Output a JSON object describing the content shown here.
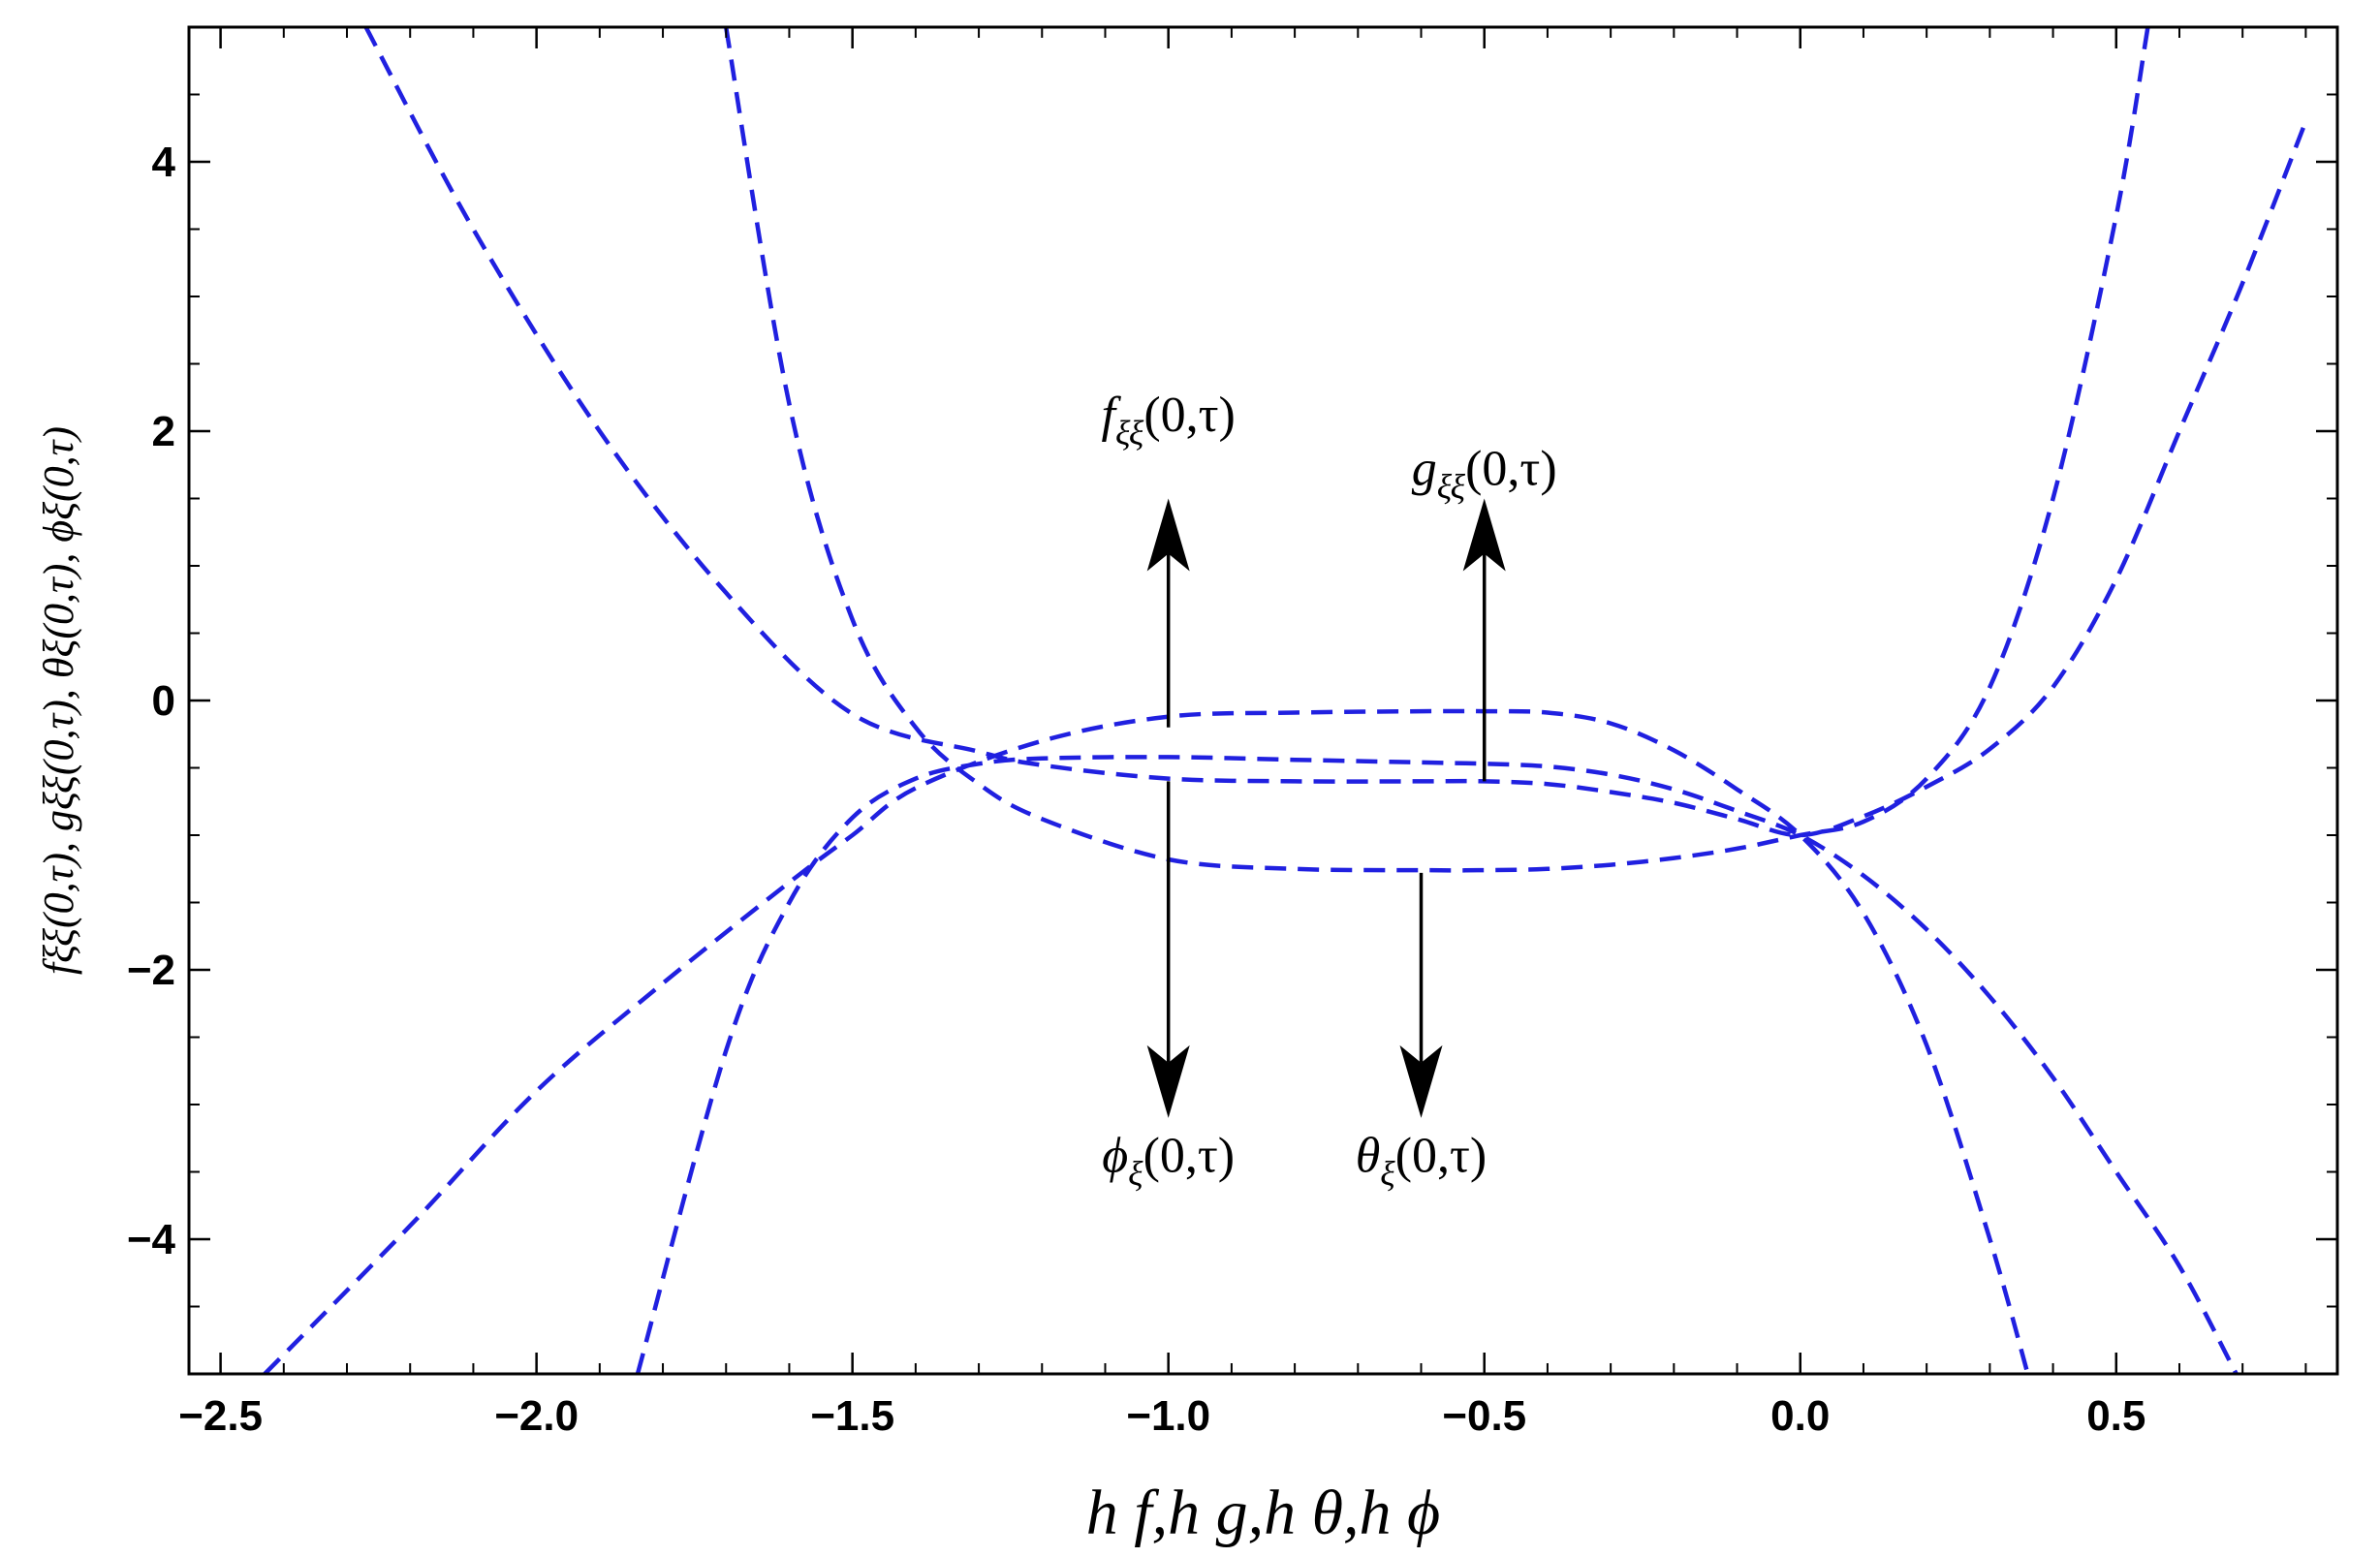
{
  "chart_data": {
    "type": "line",
    "title": "",
    "xlabel": "h f,h g,h θ,h ϕ",
    "ylabel": "fξξ(0,τ), gξξ(0,τ), θξ(0,τ), ϕξ(0,τ)",
    "xlim": [
      -2.55,
      0.85
    ],
    "ylim": [
      -5,
      5
    ],
    "x_ticks": [
      -2.5,
      -2.0,
      -1.5,
      -1.0,
      -0.5,
      0.0,
      0.5
    ],
    "x_tick_labels": [
      "−2.5",
      "−2.0",
      "−1.5",
      "−1.0",
      "−0.5",
      "0.0",
      "0.5"
    ],
    "y_ticks": [
      -4,
      -2,
      0,
      2,
      4
    ],
    "y_tick_labels": [
      "−4",
      "−2",
      "0",
      "2",
      "4"
    ],
    "grid": false,
    "line_color": "#2020e0",
    "line_style": "dashed",
    "series": [
      {
        "x": [
          -2.43,
          -2.2,
          -2.0,
          -1.8,
          -1.6,
          -1.5,
          -1.4,
          -1.2,
          -1.0,
          -0.8,
          -0.6,
          -0.5,
          -0.4,
          -0.3,
          -0.2,
          -0.1,
          0.0,
          0.1,
          0.2,
          0.3,
          0.36
        ],
        "y": [
          -5.0,
          -3.9,
          -2.9,
          -2.1,
          -1.35,
          -1.0,
          -0.65,
          -0.3,
          -0.12,
          -0.09,
          -0.08,
          -0.08,
          -0.09,
          -0.17,
          -0.37,
          -0.66,
          -1.0,
          -1.58,
          -2.56,
          -4.0,
          -5.0
        ]
      },
      {
        "x": [
          -1.84,
          -1.7,
          -1.6,
          -1.5,
          -1.4,
          -1.3,
          -1.2,
          -1.0,
          -0.8,
          -0.6,
          -0.5,
          -0.4,
          -0.3,
          -0.2,
          -0.1,
          0.0,
          0.1,
          0.2,
          0.3,
          0.4,
          0.5,
          0.6,
          0.69
        ],
        "y": [
          -5.0,
          -2.6,
          -1.5,
          -0.87,
          -0.58,
          -0.47,
          -0.43,
          -0.42,
          -0.44,
          -0.46,
          -0.47,
          -0.49,
          -0.55,
          -0.66,
          -0.82,
          -1.0,
          -1.3,
          -1.7,
          -2.2,
          -2.8,
          -3.5,
          -4.2,
          -5.0
        ]
      },
      {
        "x": [
          -2.27,
          -2.1,
          -1.9,
          -1.7,
          -1.5,
          -1.3,
          -1.2,
          -1.0,
          -0.8,
          -0.6,
          -0.5,
          -0.4,
          -0.3,
          -0.2,
          -0.1,
          0.0,
          0.1,
          0.2,
          0.3,
          0.4,
          0.5,
          0.6,
          0.7,
          0.8
        ],
        "y": [
          5.0,
          3.5,
          2.0,
          0.8,
          -0.1,
          -0.38,
          -0.48,
          -0.58,
          -0.6,
          -0.6,
          -0.6,
          -0.62,
          -0.68,
          -0.76,
          -0.88,
          -1.0,
          -0.86,
          -0.64,
          -0.36,
          0.1,
          0.9,
          2.0,
          3.1,
          4.3
        ]
      },
      {
        "x": [
          -1.7,
          -1.6,
          -1.5,
          -1.4,
          -1.3,
          -1.2,
          -1.0,
          -0.8,
          -0.6,
          -0.5,
          -0.4,
          -0.3,
          -0.2,
          -0.1,
          0.0,
          0.1,
          0.2,
          0.3,
          0.4,
          0.5,
          0.55
        ],
        "y": [
          5.0,
          2.2,
          0.6,
          -0.2,
          -0.62,
          -0.88,
          -1.18,
          -1.25,
          -1.26,
          -1.26,
          -1.25,
          -1.22,
          -1.17,
          -1.1,
          -1.0,
          -0.9,
          -0.58,
          0.1,
          1.5,
          3.6,
          5.0
        ]
      }
    ],
    "annotations": [
      {
        "label_base": "f",
        "label_sub": "ξξ",
        "label_args": "(0,τ)",
        "label_at": [
          -1.0,
          2.0
        ],
        "arrow_from": [
          -1.0,
          -0.2
        ],
        "arrow_to": [
          -1.0,
          1.5
        ]
      },
      {
        "label_base": "g",
        "label_sub": "ξξ",
        "label_args": "(0,τ)",
        "label_at": [
          -0.5,
          1.6
        ],
        "arrow_from": [
          -0.5,
          -0.6
        ],
        "arrow_to": [
          -0.5,
          1.5
        ]
      },
      {
        "label_base": "ϕ",
        "label_sub": "ξ",
        "label_args": "(0,τ)",
        "label_at": [
          -1.0,
          -3.5
        ],
        "arrow_from": [
          -1.0,
          -0.6
        ],
        "arrow_to": [
          -1.0,
          -3.1
        ]
      },
      {
        "label_base": "θ",
        "label_sub": "ξ",
        "label_args": "(0,τ)",
        "label_at": [
          -0.6,
          -3.5
        ],
        "arrow_from": [
          -0.6,
          -1.28
        ],
        "arrow_to": [
          -0.6,
          -3.1
        ]
      }
    ]
  }
}
